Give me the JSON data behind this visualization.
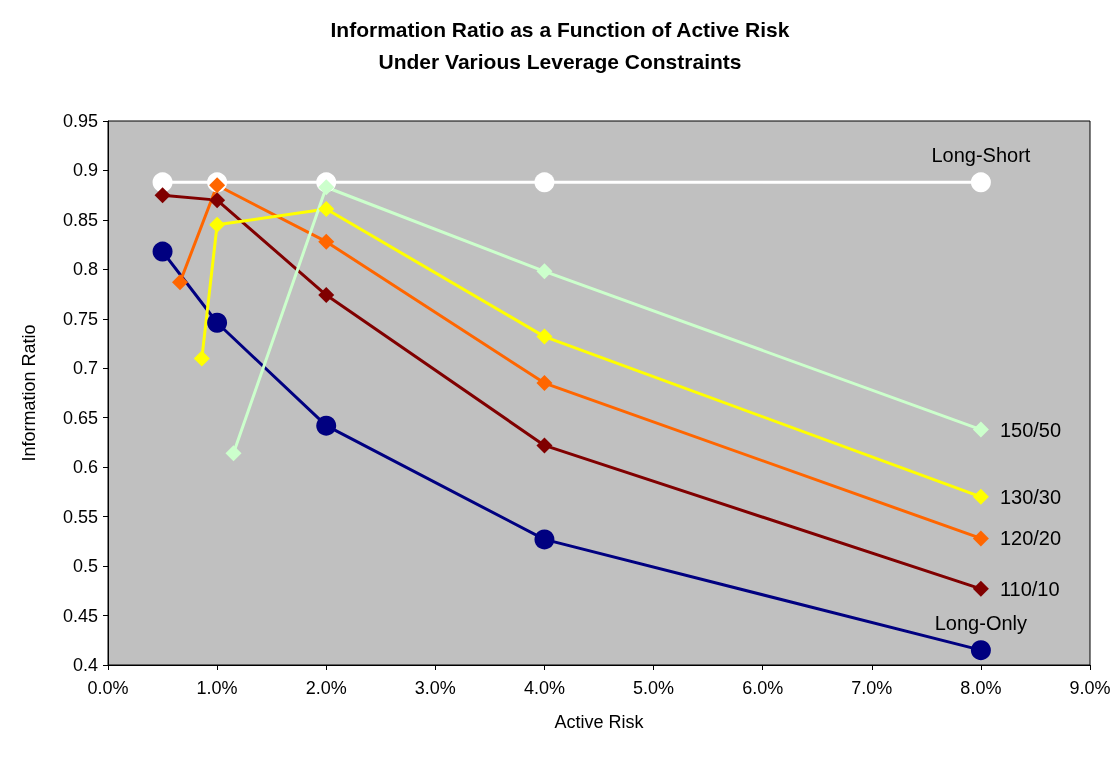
{
  "chart_data": {
    "type": "line",
    "title": "Information Ratio as a Function of Active Risk\nUnder Various Leverage Constraints",
    "xlabel": "Active Risk",
    "ylabel": "Information Ratio",
    "xlim": [
      0,
      9
    ],
    "xticks": [
      {
        "value": 0,
        "label": "0.0%"
      },
      {
        "value": 1,
        "label": "1.0%"
      },
      {
        "value": 2,
        "label": "2.0%"
      },
      {
        "value": 3,
        "label": "3.0%"
      },
      {
        "value": 4,
        "label": "4.0%"
      },
      {
        "value": 5,
        "label": "5.0%"
      },
      {
        "value": 6,
        "label": "6.0%"
      },
      {
        "value": 7,
        "label": "7.0%"
      },
      {
        "value": 8,
        "label": "8.0%"
      },
      {
        "value": 9,
        "label": "9.0%"
      }
    ],
    "ylim": [
      0.4,
      0.95
    ],
    "yticks": [
      0.4,
      0.45,
      0.5,
      0.55,
      0.6,
      0.65,
      0.7,
      0.75,
      0.8,
      0.85,
      0.9,
      0.95
    ],
    "grid": false,
    "legend": false,
    "series": [
      {
        "name": "Long-Short",
        "color": "#ffffff",
        "marker": "circle",
        "x": [
          0.5,
          1,
          2,
          4,
          8
        ],
        "values": [
          0.888,
          0.888,
          0.888,
          0.888,
          0.888
        ]
      },
      {
        "name": "Long-Only",
        "color": "#000080",
        "marker": "circle",
        "x": [
          0.5,
          1,
          2,
          4,
          8
        ],
        "values": [
          0.818,
          0.746,
          0.642,
          0.527,
          0.415
        ]
      },
      {
        "name": "110/10",
        "color": "#800000",
        "marker": "diamond",
        "x": [
          0.5,
          1,
          2,
          4,
          8
        ],
        "values": [
          0.875,
          0.87,
          0.774,
          0.622,
          0.477
        ]
      },
      {
        "name": "120/20",
        "color": "#ff6600",
        "marker": "diamond",
        "x": [
          0.66,
          1,
          2,
          4,
          8
        ],
        "values": [
          0.787,
          0.885,
          0.828,
          0.685,
          0.528
        ]
      },
      {
        "name": "130/30",
        "color": "#ffff00",
        "marker": "diamond",
        "x": [
          0.86,
          1,
          2,
          4,
          8
        ],
        "values": [
          0.71,
          0.845,
          0.861,
          0.732,
          0.57
        ]
      },
      {
        "name": "150/50",
        "color": "#ccffcc",
        "marker": "diamond",
        "x": [
          1.15,
          2,
          4,
          8
        ],
        "values": [
          0.614,
          0.883,
          0.798,
          0.638
        ]
      }
    ]
  }
}
